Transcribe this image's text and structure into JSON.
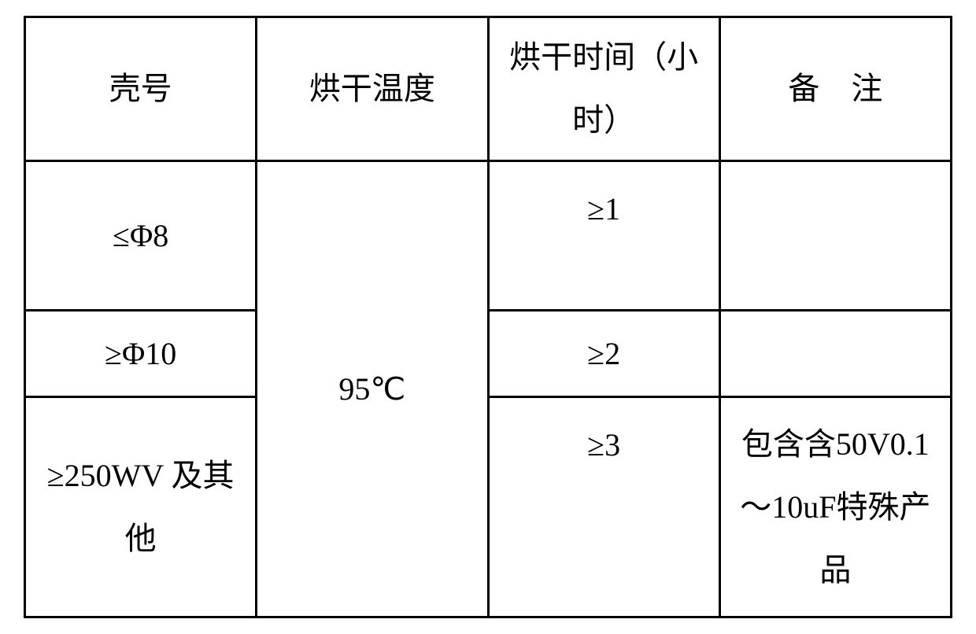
{
  "table": {
    "headers": {
      "col1": "壳号",
      "col2": "烘干温度",
      "col3": "烘干时间（小时）",
      "col4": "备　注"
    },
    "merged_temp": "95℃",
    "rows": [
      {
        "shell_no": "≤Φ8",
        "time": "≥1",
        "remark": ""
      },
      {
        "shell_no": "≥Φ10",
        "time": "≥2",
        "remark": ""
      },
      {
        "shell_no": "≥250WV 及其他",
        "time": "≥3",
        "remark": "包含含50V0.1～10uF特殊产品"
      }
    ],
    "styling": {
      "border_color": "#000000",
      "border_width": 3,
      "background_color": "#ffffff",
      "text_color": "#000000",
      "font_size": 40,
      "font_family": "SimSun"
    }
  }
}
